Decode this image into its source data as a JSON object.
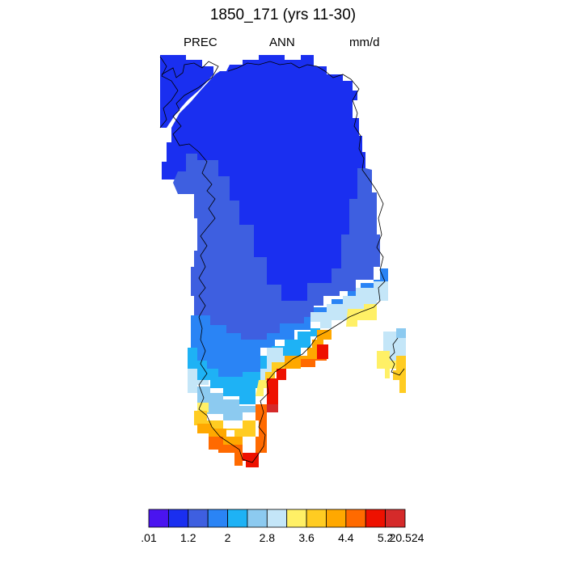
{
  "title": "1850_171 (yrs 11-30)",
  "subtitle": {
    "left": "PREC",
    "center": "ANN",
    "right": "mm/d"
  },
  "colorbar": {
    "colors": [
      "#4a14f0",
      "#1a2ff0",
      "#3e5fe0",
      "#2a84f5",
      "#1eb2f5",
      "#8ccaf0",
      "#c4e6f8",
      "#fff066",
      "#ffcc22",
      "#ffa800",
      "#ff6a00",
      "#ee1100",
      "#d52a2a"
    ],
    "labels": [
      ".01",
      "1.2",
      "2",
      "2.8",
      "3.6",
      "4.4",
      "5.2",
      "20.524"
    ]
  }
}
